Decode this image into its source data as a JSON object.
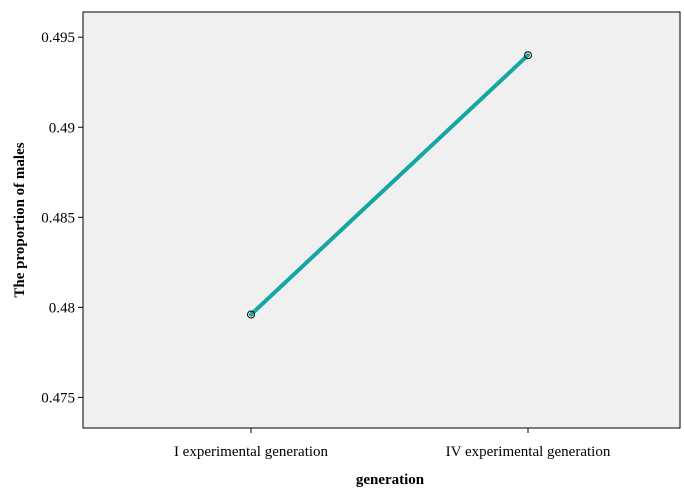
{
  "chart_data": {
    "type": "line",
    "categories": [
      "I experimental generation",
      "IV experimental generation"
    ],
    "series": [
      {
        "values": [
          0.4796,
          0.494
        ]
      }
    ],
    "xlabel": "generation",
    "ylabel": "The proportion of males",
    "ylim": [
      0.4733,
      0.4964
    ],
    "yticks": [
      "0.475",
      "0.48",
      "0.485",
      "0.49",
      "0.495"
    ],
    "grid": false,
    "plot_background": "#f0f0f0",
    "line_color": "#13a6a3",
    "marker_style": "open-circle"
  }
}
